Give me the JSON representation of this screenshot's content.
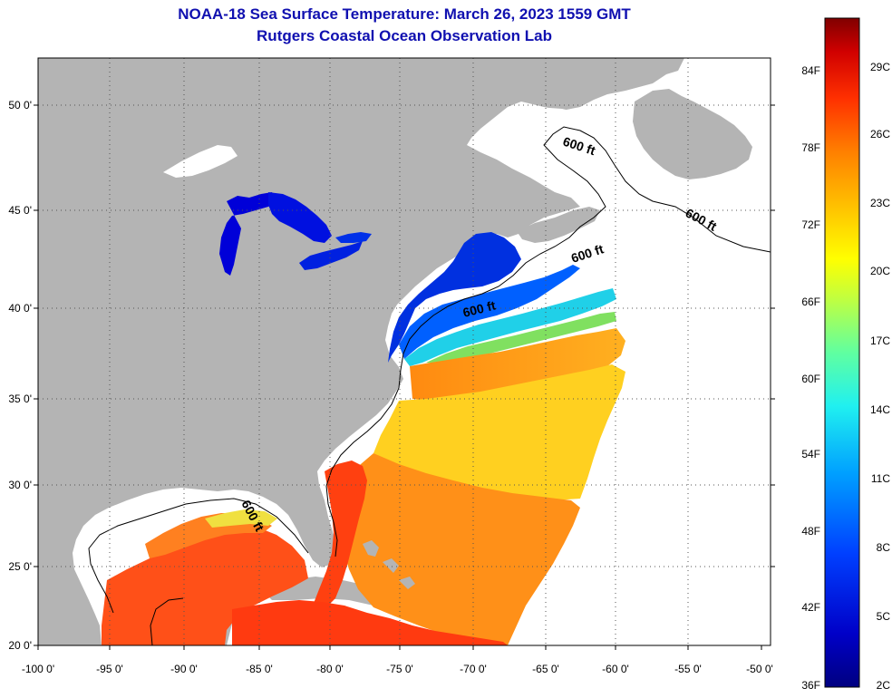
{
  "title_line1": "NOAA-18 Sea Surface Temperature:  March 26, 2023 1559 GMT",
  "title_line2": "Rutgers Coastal Ocean Observation Lab",
  "x_ticks": [
    "-100 0'",
    "-95 0'",
    "-90 0'",
    "-85 0'",
    "-80 0'",
    "-75 0'",
    "-70 0'",
    "-65 0'",
    "-60 0'",
    "-55 0'",
    "-50 0'"
  ],
  "y_ticks": [
    "50 0'",
    "45 0'",
    "40 0'",
    "35 0'",
    "30 0'",
    "25 0'",
    "20 0'"
  ],
  "contour_labels": [
    "600 ft",
    "600 ft",
    "600 ft",
    "600 ft",
    "600 ft"
  ],
  "colorbar": {
    "fahrenheit": [
      "84F",
      "78F",
      "72F",
      "66F",
      "60F",
      "54F",
      "48F",
      "42F",
      "36F"
    ],
    "celsius": [
      "29C",
      "26C",
      "23C",
      "20C",
      "17C",
      "14C",
      "11C",
      "8C",
      "5C",
      "2C"
    ]
  },
  "colors": {
    "land": "#b4b4b4",
    "ocean_no_data": "#ffffff",
    "title": "#1010b0",
    "scale": [
      "#800000",
      "#c00000",
      "#ff2000",
      "#ff6000",
      "#ffa000",
      "#ffe000",
      "#e0ff20",
      "#80ff80",
      "#20ffe0",
      "#00a0ff",
      "#0040ff",
      "#0000c0",
      "#000080"
    ]
  }
}
